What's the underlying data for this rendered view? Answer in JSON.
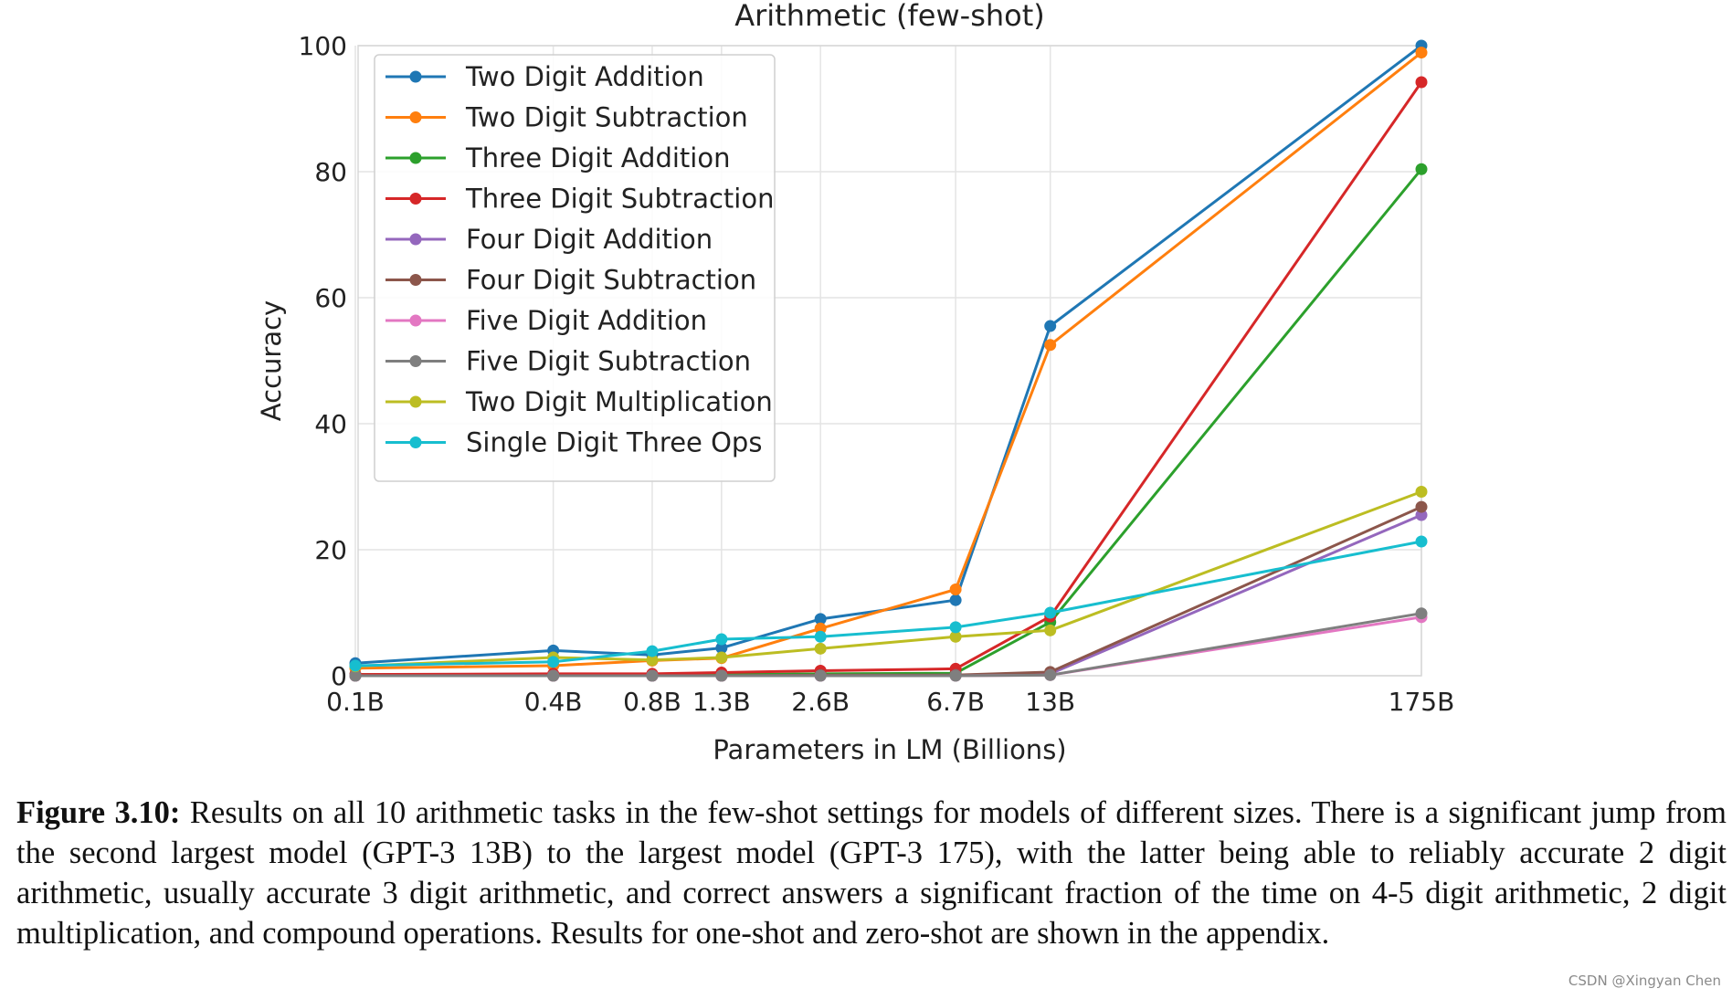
{
  "chart_data": {
    "type": "line",
    "title": "Arithmetic (few-shot)",
    "xlabel": "Parameters in LM (Billions)",
    "ylabel": "Accuracy",
    "x_scale": "log",
    "x": [
      0.1,
      0.4,
      0.8,
      1.3,
      2.6,
      6.7,
      13,
      175
    ],
    "x_tick_labels": [
      "0.1B",
      "0.4B",
      "0.8B",
      "1.3B",
      "2.6B",
      "6.7B",
      "13B",
      "175B"
    ],
    "y_ticks": [
      0,
      20,
      40,
      60,
      80,
      100
    ],
    "ylim": [
      0,
      100
    ],
    "grid": true,
    "legend_position": "top-left",
    "series": [
      {
        "name": "Two Digit Addition",
        "color": "#1f77b4",
        "values": [
          2.0,
          4.0,
          3.3,
          4.4,
          9.0,
          12.0,
          55.5,
          100.0
        ]
      },
      {
        "name": "Two Digit Subtraction",
        "color": "#ff7f0e",
        "values": [
          1.2,
          1.6,
          2.4,
          2.8,
          7.5,
          13.7,
          52.5,
          98.9
        ]
      },
      {
        "name": "Three Digit Addition",
        "color": "#2ca02c",
        "values": [
          0.2,
          0.2,
          0.2,
          0.2,
          0.3,
          0.4,
          8.5,
          80.4
        ]
      },
      {
        "name": "Three Digit Subtraction",
        "color": "#d62728",
        "values": [
          0.2,
          0.3,
          0.3,
          0.5,
          0.8,
          1.1,
          9.4,
          94.2
        ]
      },
      {
        "name": "Four Digit Addition",
        "color": "#9467bd",
        "values": [
          0.0,
          0.0,
          0.0,
          0.0,
          0.0,
          0.1,
          0.3,
          25.5
        ]
      },
      {
        "name": "Four Digit Subtraction",
        "color": "#8c564b",
        "values": [
          0.0,
          0.0,
          0.0,
          0.0,
          0.1,
          0.1,
          0.6,
          26.8
        ]
      },
      {
        "name": "Five Digit Addition",
        "color": "#e377c2",
        "values": [
          0.0,
          0.0,
          0.0,
          0.0,
          0.0,
          0.0,
          0.1,
          9.3
        ]
      },
      {
        "name": "Five Digit Subtraction",
        "color": "#7f7f7f",
        "values": [
          0.0,
          0.0,
          0.0,
          0.0,
          0.0,
          0.0,
          0.1,
          9.9
        ]
      },
      {
        "name": "Two Digit Multiplication",
        "color": "#bcbd22",
        "values": [
          1.5,
          2.9,
          2.5,
          2.9,
          4.3,
          6.2,
          7.2,
          29.2
        ]
      },
      {
        "name": "Single Digit Three Ops",
        "color": "#17becf",
        "values": [
          1.6,
          2.2,
          3.9,
          5.8,
          6.2,
          7.7,
          10.0,
          21.3
        ]
      }
    ]
  },
  "caption": {
    "label": "Figure 3.10:",
    "text": "Results on all 10 arithmetic tasks in the few-shot settings for models of different sizes. There is a significant jump from the second largest model (GPT-3 13B) to the largest model (GPT-3 175), with the latter being able to reliably accurate 2 digit arithmetic, usually accurate 3 digit arithmetic, and correct answers a significant fraction of the time on 4-5 digit arithmetic, 2 digit multiplication, and compound operations. Results for one-shot and zero-shot are shown in the appendix."
  },
  "watermark": "CSDN @Xingyan Chen"
}
